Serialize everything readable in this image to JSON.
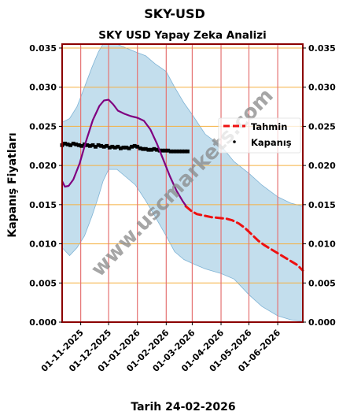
{
  "header": {
    "main_title": "SKY-USD",
    "chart_title": "SKY USD Yapay Zeka Analizi",
    "footer": "Tarih 24-02-2026",
    "watermark": "www.uscmarkets.com"
  },
  "colors": {
    "band_fill": "#b8d8ea",
    "band_edge": "#7fb3d5",
    "forecast_line": "#ee1111",
    "close_marker": "#000000",
    "ma_line": "#800080",
    "grid_h": "#f5b041",
    "grid_v": "#e57373",
    "frame": "#8b0000"
  },
  "chart_data": {
    "type": "line",
    "title": "SKY USD Yapay Zeka Analizi",
    "xlabel": "Tarih 24-02-2026",
    "ylabel": "Kapanış Fiyatları",
    "x_range": [
      "2025-10-12",
      "2026-06-28"
    ],
    "ylim": [
      0.0,
      0.0355
    ],
    "y_ticks": [
      "0.000",
      "0.005",
      "0.010",
      "0.015",
      "0.020",
      "0.025",
      "0.030",
      "0.035"
    ],
    "x_ticks": [
      "01-11-2025",
      "01-12-2025",
      "01-01-2026",
      "01-02-2026",
      "01-03-2026",
      "01-04-2026",
      "01-05-2026",
      "01-06-2026"
    ],
    "grid": true,
    "legend": {
      "placement": "right",
      "entries": [
        "Tahmin",
        "Kapanış"
      ]
    },
    "band": {
      "x": [
        "2025-10-12",
        "2025-10-20",
        "2025-10-28",
        "2025-11-05",
        "2025-11-13",
        "2025-11-20",
        "2025-11-25",
        "2025-12-01",
        "2025-12-10",
        "2025-12-20",
        "2025-12-30",
        "2026-01-10",
        "2026-01-20",
        "2026-02-01",
        "2026-02-10",
        "2026-02-20",
        "2026-03-01",
        "2026-03-15",
        "2026-04-01",
        "2026-04-15",
        "2026-05-01",
        "2026-05-15",
        "2026-06-01",
        "2026-06-15",
        "2026-06-28"
      ],
      "upper": [
        0.0255,
        0.026,
        0.0275,
        0.03,
        0.0325,
        0.0345,
        0.0355,
        0.0355,
        0.0355,
        0.035,
        0.0345,
        0.034,
        0.033,
        0.032,
        0.03,
        0.028,
        0.0265,
        0.024,
        0.0225,
        0.0205,
        0.019,
        0.0175,
        0.016,
        0.0152,
        0.0148
      ],
      "lower": [
        0.0095,
        0.0085,
        0.0095,
        0.011,
        0.0135,
        0.016,
        0.018,
        0.0195,
        0.0195,
        0.0185,
        0.0175,
        0.0155,
        0.0135,
        0.011,
        0.009,
        0.008,
        0.0075,
        0.0068,
        0.0062,
        0.0055,
        0.0035,
        0.002,
        0.0008,
        0.0003,
        0.0001
      ]
    },
    "series": [
      {
        "name": "Tahmin",
        "style": "dashed",
        "x": [
          "2026-02-22",
          "2026-02-28",
          "2026-03-06",
          "2026-03-14",
          "2026-03-22",
          "2026-03-30",
          "2026-04-07",
          "2026-04-13",
          "2026-04-20",
          "2026-04-27",
          "2026-05-04",
          "2026-05-11",
          "2026-05-18",
          "2026-05-25",
          "2026-06-01",
          "2026-06-08",
          "2026-06-15",
          "2026-06-22",
          "2026-06-28"
        ],
        "y": [
          0.0148,
          0.0142,
          0.0138,
          0.0136,
          0.0134,
          0.0133,
          0.0132,
          0.013,
          0.0126,
          0.012,
          0.0112,
          0.0104,
          0.0098,
          0.0093,
          0.0088,
          0.0083,
          0.0078,
          0.0073,
          0.0066
        ]
      },
      {
        "name": "Kapanış",
        "style": "markers",
        "x": [
          "2025-10-12",
          "2025-10-15",
          "2025-10-18",
          "2025-10-21",
          "2025-10-24",
          "2025-10-27",
          "2025-10-30",
          "2025-11-02",
          "2025-11-05",
          "2025-11-08",
          "2025-11-11",
          "2025-11-14",
          "2025-11-17",
          "2025-11-20",
          "2025-11-23",
          "2025-11-26",
          "2025-11-29",
          "2025-12-02",
          "2025-12-05",
          "2025-12-08",
          "2025-12-11",
          "2025-12-14",
          "2025-12-17",
          "2025-12-20",
          "2025-12-23",
          "2025-12-26",
          "2025-12-29",
          "2026-01-01",
          "2026-01-04",
          "2026-01-07",
          "2026-01-10",
          "2026-01-13",
          "2026-01-16",
          "2026-01-19",
          "2026-01-22",
          "2026-01-25",
          "2026-01-28",
          "2026-01-31",
          "2026-02-03",
          "2026-02-06",
          "2026-02-09",
          "2026-02-12",
          "2026-02-15",
          "2026-02-18",
          "2026-02-21",
          "2026-02-24"
        ],
        "y": [
          0.0226,
          0.0228,
          0.0227,
          0.0226,
          0.0228,
          0.0227,
          0.0226,
          0.0225,
          0.0227,
          0.0226,
          0.0225,
          0.0226,
          0.0224,
          0.0226,
          0.0225,
          0.0224,
          0.0225,
          0.0223,
          0.0224,
          0.0223,
          0.0224,
          0.0222,
          0.0223,
          0.0223,
          0.0222,
          0.0224,
          0.0225,
          0.0224,
          0.0222,
          0.0221,
          0.0221,
          0.022,
          0.022,
          0.0221,
          0.022,
          0.0219,
          0.0219,
          0.0219,
          0.0219,
          0.0218,
          0.0218,
          0.0218,
          0.0218,
          0.0218,
          0.0218,
          0.0218
        ]
      },
      {
        "name": "",
        "style": "solid",
        "x": [
          "2025-10-12",
          "2025-10-15",
          "2025-10-19",
          "2025-10-24",
          "2025-10-31",
          "2025-11-07",
          "2025-11-14",
          "2025-11-21",
          "2025-11-26",
          "2025-12-01",
          "2025-12-06",
          "2025-12-11",
          "2025-12-18",
          "2025-12-25",
          "2026-01-01",
          "2026-01-08",
          "2026-01-15",
          "2026-01-22",
          "2026-01-29",
          "2026-02-05",
          "2026-02-12",
          "2026-02-19",
          "2026-02-22"
        ],
        "y": [
          0.018,
          0.0173,
          0.0174,
          0.0182,
          0.0203,
          0.0232,
          0.0258,
          0.0276,
          0.0283,
          0.0284,
          0.0278,
          0.027,
          0.0266,
          0.0263,
          0.0261,
          0.0257,
          0.0246,
          0.0228,
          0.0207,
          0.0186,
          0.0168,
          0.0154,
          0.0149
        ]
      }
    ]
  }
}
